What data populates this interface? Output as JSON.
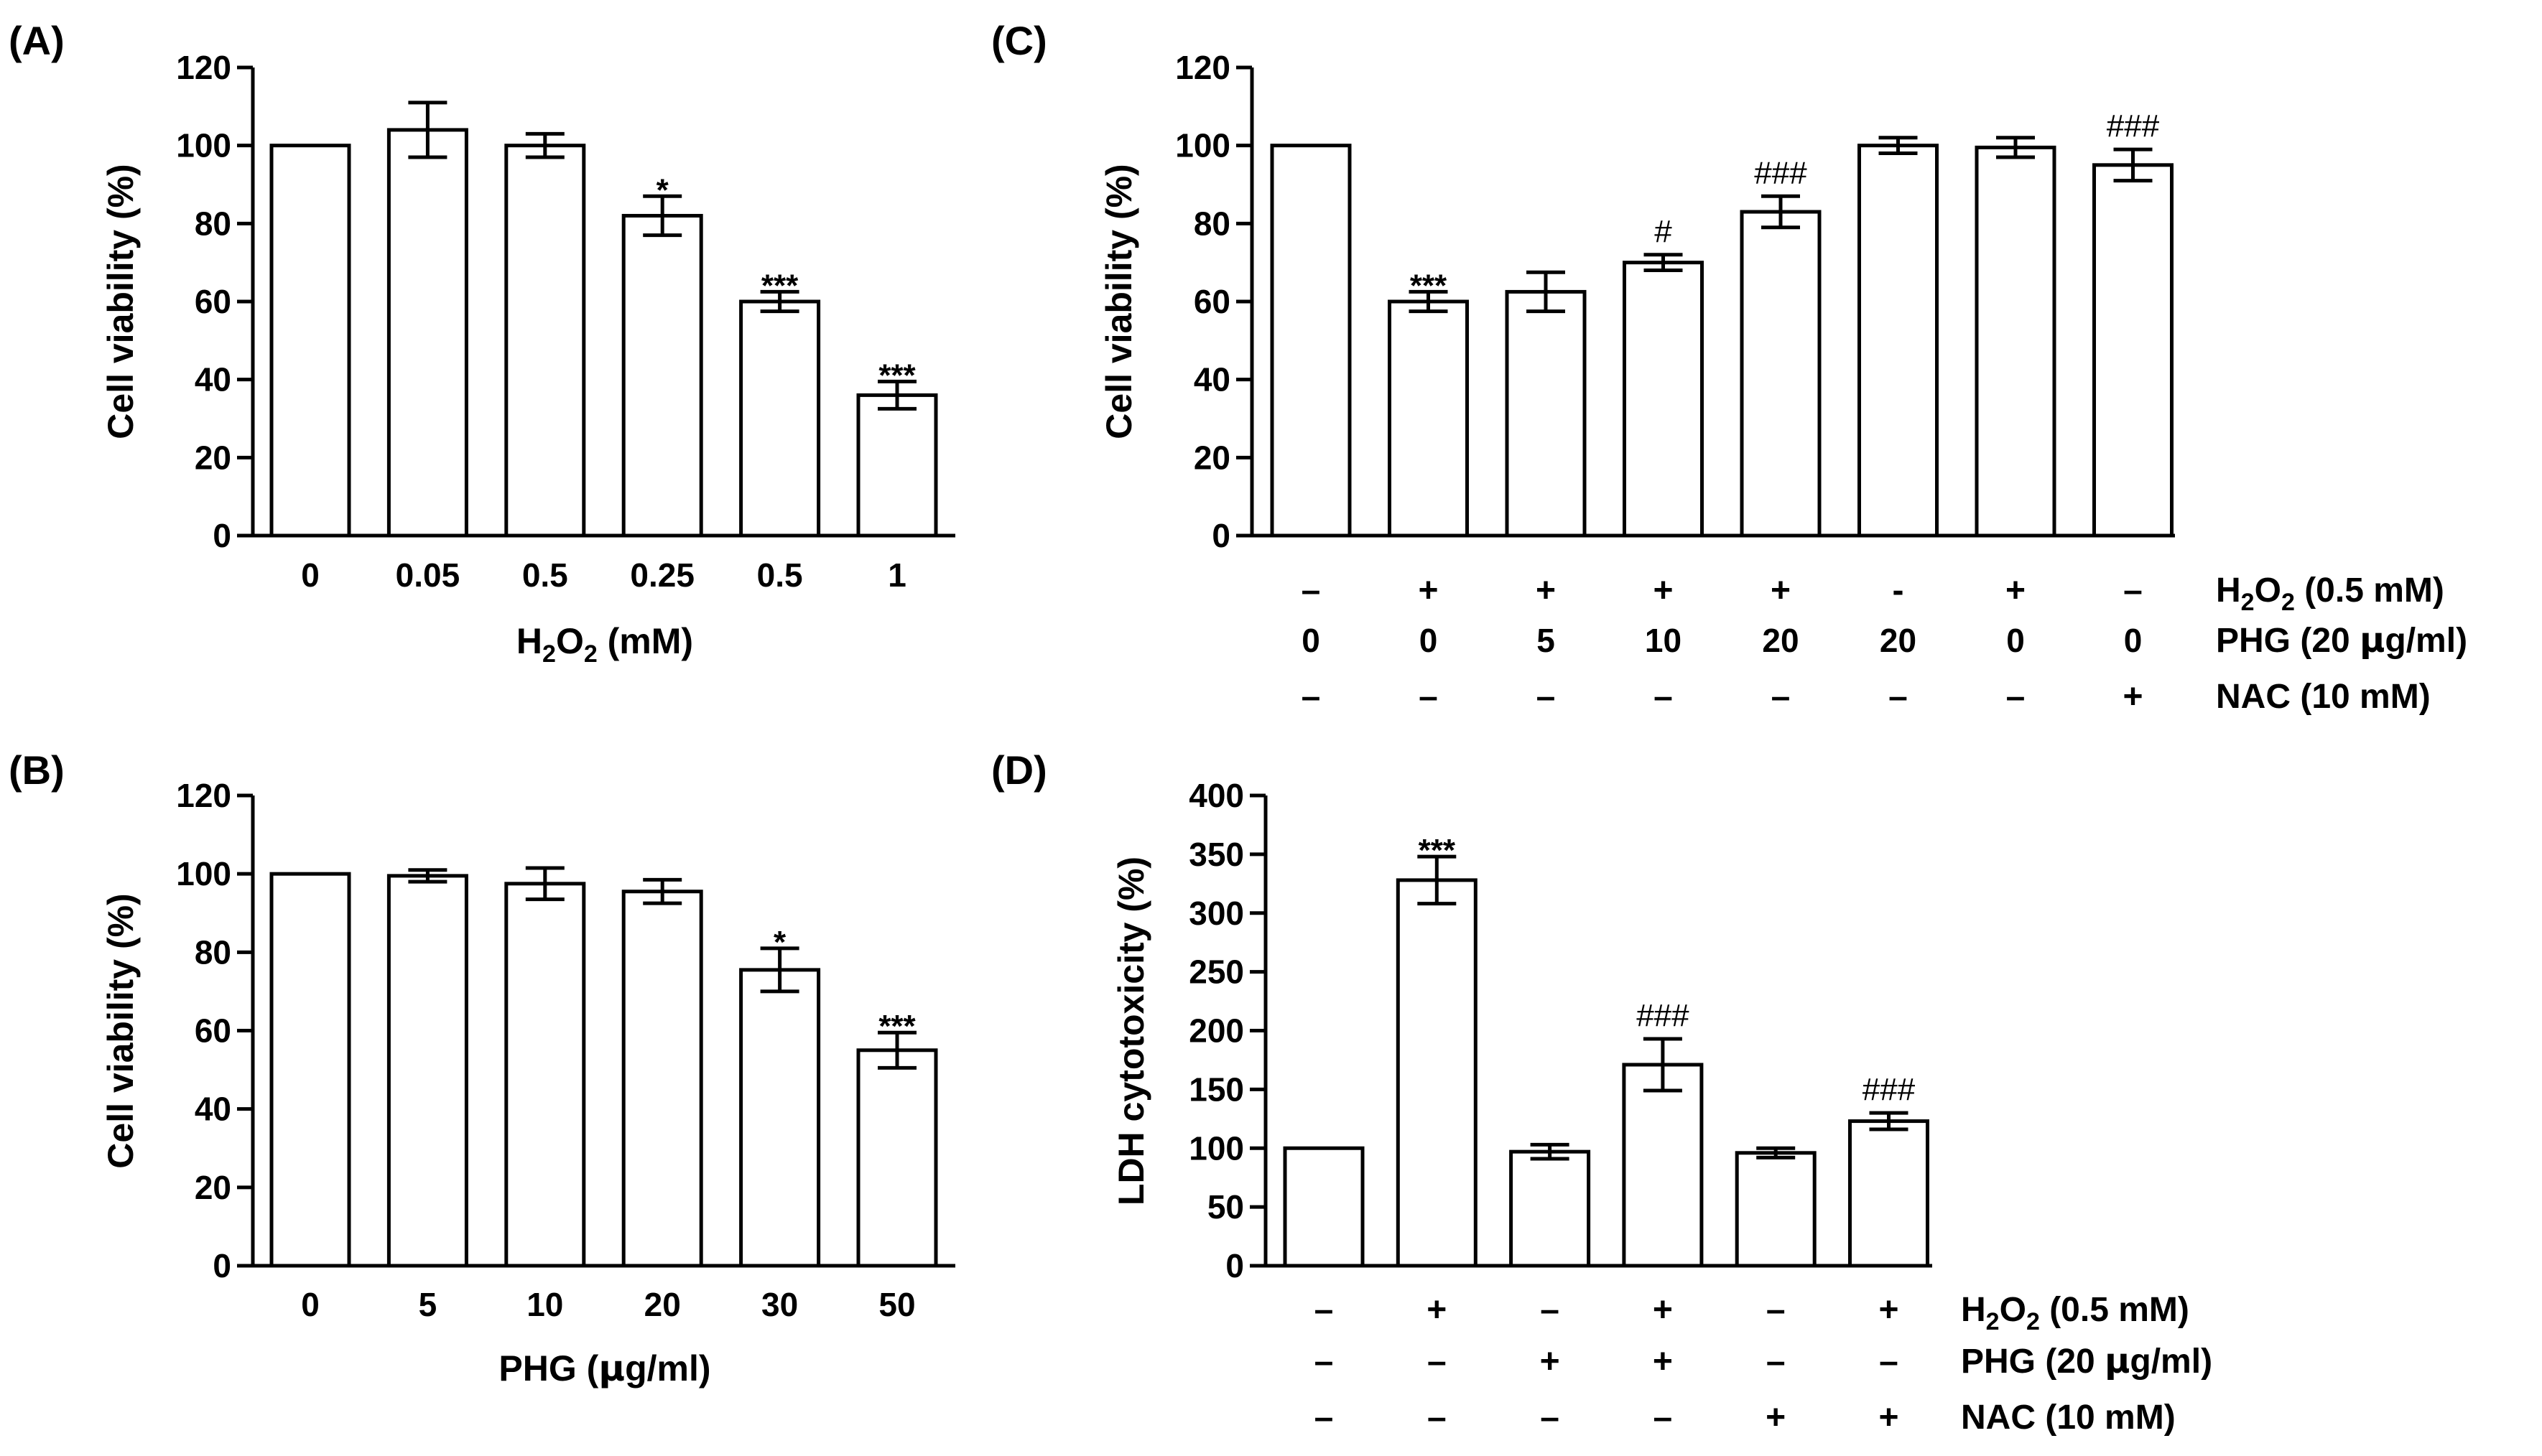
{
  "chart_data": [
    {
      "panel": "(A)",
      "type": "bar",
      "ylabel": "Cell viability (%)",
      "xlabel": {
        "main": "H",
        "sub1": "2",
        "mid": "O",
        "sub2": "2",
        "rest": " (mM)"
      },
      "ylim": [
        0,
        120
      ],
      "yticks": [
        0,
        20,
        40,
        60,
        80,
        100,
        120
      ],
      "ytick_labels": [
        "0",
        "20",
        "40",
        "60",
        "80",
        "100",
        "120"
      ],
      "categories": [
        "0",
        "0.05",
        "0.5",
        "0.25",
        "0.5",
        "1"
      ],
      "values": [
        100,
        104,
        100,
        82,
        60,
        36
      ],
      "errors": [
        0,
        7,
        3,
        5,
        2.5,
        3.5
      ],
      "annotations": [
        "",
        "",
        "",
        "*",
        "***",
        "***"
      ]
    },
    {
      "panel": "(B)",
      "type": "bar",
      "ylabel": "Cell viability (%)",
      "xlabel": {
        "pre": "PHG (",
        "mu": "μ",
        "post": "g/ml)"
      },
      "ylim": [
        0,
        120
      ],
      "yticks": [
        0,
        20,
        40,
        60,
        80,
        100,
        120
      ],
      "ytick_labels": [
        "0",
        "20",
        "40",
        "60",
        "80",
        "100",
        "120"
      ],
      "categories": [
        "0",
        "5",
        "10",
        "20",
        "30",
        "50"
      ],
      "values": [
        100,
        99.5,
        97.5,
        95.5,
        75.5,
        55
      ],
      "errors": [
        0,
        1.5,
        4,
        3,
        5.5,
        4.5
      ],
      "annotations": [
        "",
        "",
        "",
        "",
        "*",
        "***"
      ]
    },
    {
      "panel": "(C)",
      "type": "bar",
      "ylabel": "Cell viability (%)",
      "ylim": [
        0,
        120
      ],
      "yticks": [
        0,
        20,
        40,
        60,
        80,
        100,
        120
      ],
      "ytick_labels": [
        "0",
        "20",
        "40",
        "60",
        "80",
        "100",
        "120"
      ],
      "values": [
        100,
        60,
        62.5,
        70,
        83,
        100,
        99.5,
        95
      ],
      "errors": [
        0,
        2.5,
        5,
        2,
        4,
        2,
        2.5,
        4
      ],
      "annotations": [
        "",
        "***",
        "",
        "#",
        "###",
        "",
        "",
        "###"
      ],
      "annotation_styles": [
        "",
        "star",
        "",
        "hash",
        "hash",
        "",
        "",
        "hash"
      ],
      "rows": [
        {
          "label": {
            "main": "H",
            "sub1": "2",
            "mid": "O",
            "sub2": "2",
            "rest": " (0.5 mM)"
          },
          "values": [
            "–",
            "+",
            "+",
            "+",
            "+",
            "-",
            "+",
            "–"
          ]
        },
        {
          "label": {
            "pre": "PHG (20 ",
            "mu": "μ",
            "post": "g/ml)"
          },
          "values": [
            "0",
            "0",
            "5",
            "10",
            "20",
            "20",
            "0",
            "0"
          ]
        },
        {
          "label": {
            "text": "NAC (10 mM)"
          },
          "values": [
            "–",
            "–",
            "–",
            "–",
            "–",
            "–",
            "–",
            "+"
          ]
        }
      ]
    },
    {
      "panel": "(D)",
      "type": "bar",
      "ylabel": "LDH cytotoxicity (%)",
      "ylim": [
        0,
        400
      ],
      "yticks": [
        0,
        50,
        100,
        150,
        200,
        250,
        300,
        350,
        400
      ],
      "ytick_labels": [
        "0",
        "50",
        "100",
        "150",
        "200",
        "250",
        "300",
        "350",
        "400"
      ],
      "values": [
        100,
        328,
        97,
        171,
        96,
        123
      ],
      "errors": [
        0,
        20,
        6,
        22,
        4,
        7
      ],
      "annotations": [
        "",
        "***",
        "",
        "###",
        "",
        "###"
      ],
      "annotation_styles": [
        "",
        "star",
        "",
        "hash",
        "",
        "hash"
      ],
      "rows": [
        {
          "label": {
            "main": "H",
            "sub1": "2",
            "mid": "O",
            "sub2": "2",
            "rest": " (0.5 mM)"
          },
          "values": [
            "–",
            "+",
            "–",
            "+",
            "–",
            "+"
          ]
        },
        {
          "label": {
            "pre": "PHG (20 ",
            "mu": "μ",
            "post": "g/ml)"
          },
          "values": [
            "–",
            "–",
            "+",
            "+",
            "–",
            "–"
          ]
        },
        {
          "label": {
            "text": "NAC (10 mM)"
          },
          "values": [
            "–",
            "–",
            "–",
            "–",
            "+",
            "+"
          ]
        }
      ]
    }
  ]
}
